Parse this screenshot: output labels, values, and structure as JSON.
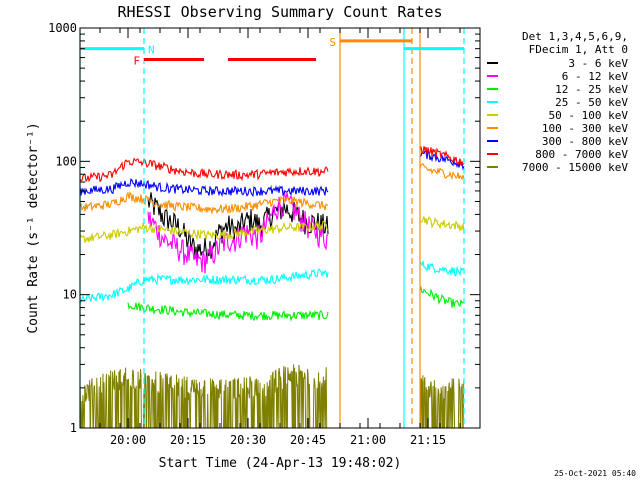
{
  "chart_data": {
    "type": "line",
    "title": "RHESSI Observing Summary Count Rates",
    "xlabel": "Start Time (24-Apr-13 19:48:02)",
    "ylabel": "Count Rate (s⁻¹ detector⁻¹)",
    "x_range_minutes_after_start": [
      0,
      100
    ],
    "x_ticks": [
      {
        "label": "20:00",
        "t": 12
      },
      {
        "label": "20:15",
        "t": 27
      },
      {
        "label": "20:30",
        "t": 42
      },
      {
        "label": "20:45",
        "t": 57
      },
      {
        "label": "21:00",
        "t": 72
      },
      {
        "label": "21:15",
        "t": 87
      }
    ],
    "y_scale": "log",
    "ylim": [
      1,
      1000
    ],
    "y_ticks": [
      {
        "label": "1",
        "v": 1
      },
      {
        "label": "10",
        "v": 10
      },
      {
        "label": "100",
        "v": 100
      },
      {
        "label": "1000",
        "v": 1000
      }
    ],
    "legend_header": [
      "Det 1,3,4,5,6,9,",
      "FDecim 1, Att 0"
    ],
    "legend_placement": "right",
    "series": [
      {
        "name": "3 - 6 keV",
        "color": "#000000",
        "kind": "low",
        "x": [
          17,
          19,
          21,
          23,
          25,
          27,
          29,
          31,
          33,
          35,
          37,
          39,
          41,
          43,
          45,
          47,
          49,
          51,
          53,
          55,
          57,
          59,
          61,
          62
        ],
        "values": [
          50,
          45,
          38,
          35,
          32,
          25,
          22,
          22,
          24,
          30,
          33,
          30,
          35,
          37,
          33,
          38,
          42,
          45,
          42,
          38,
          35,
          35,
          33,
          32
        ]
      },
      {
        "name": "6 - 12 keV",
        "color": "#ff00ff",
        "kind": "low",
        "x": [
          17,
          19,
          21,
          23,
          25,
          27,
          29,
          31,
          33,
          35,
          37,
          39,
          41,
          43,
          45,
          47,
          49,
          51,
          53,
          55,
          57,
          59,
          61,
          62
        ],
        "values": [
          38,
          32,
          26,
          24,
          22,
          20,
          18,
          18,
          20,
          23,
          26,
          26,
          30,
          28,
          27,
          35,
          45,
          50,
          45,
          38,
          33,
          30,
          27,
          27
        ]
      },
      {
        "name": "12 - 25 keV",
        "color": "#00ee00",
        "kind": "flat",
        "x": [
          12,
          16,
          20,
          24,
          28,
          32,
          36,
          40,
          44,
          48,
          52,
          56,
          60,
          62,
          85,
          88,
          91,
          94,
          96
        ],
        "values": [
          8.5,
          8,
          7.8,
          7.5,
          7.3,
          7.2,
          7.1,
          7,
          7,
          7,
          7,
          7,
          7,
          7,
          11,
          10,
          9,
          8.5,
          8.5
        ]
      },
      {
        "name": "25 - 50 keV",
        "color": "#00ffff",
        "kind": "flat",
        "x": [
          0,
          4,
          8,
          12,
          16,
          20,
          24,
          28,
          32,
          36,
          40,
          44,
          48,
          52,
          56,
          60,
          62,
          85,
          88,
          91,
          94,
          96
        ],
        "values": [
          9,
          9.5,
          10,
          11,
          13,
          13,
          13,
          13,
          13,
          13,
          13,
          13,
          13,
          13.5,
          14,
          14.5,
          14.5,
          17,
          16,
          15.5,
          15,
          14.5
        ]
      },
      {
        "name": "50 - 100 keV",
        "color": "#cccc00",
        "kind": "flat",
        "x": [
          0,
          4,
          8,
          12,
          16,
          20,
          24,
          28,
          32,
          36,
          40,
          44,
          48,
          52,
          56,
          60,
          62,
          85,
          88,
          91,
          94,
          96
        ],
        "values": [
          26,
          27,
          28,
          30,
          32,
          31,
          30,
          29,
          28,
          28,
          29,
          30,
          31,
          32,
          32,
          33,
          33,
          38,
          35,
          34,
          33,
          32
        ]
      },
      {
        "name": "100 - 300 keV",
        "color": "#ff8c00",
        "kind": "flat",
        "x": [
          0,
          4,
          8,
          12,
          16,
          20,
          24,
          28,
          32,
          36,
          40,
          44,
          48,
          52,
          56,
          60,
          62,
          85,
          88,
          91,
          94,
          96
        ],
        "values": [
          45,
          46,
          48,
          55,
          52,
          48,
          46,
          45,
          44,
          44,
          45,
          47,
          50,
          51,
          49,
          47,
          46,
          90,
          85,
          82,
          78,
          75
        ]
      },
      {
        "name": "300 - 800 keV",
        "color": "#0000ff",
        "kind": "flat",
        "x": [
          0,
          4,
          8,
          12,
          16,
          20,
          24,
          28,
          32,
          36,
          40,
          44,
          48,
          52,
          56,
          60,
          62,
          85,
          88,
          91,
          94,
          96
        ],
        "values": [
          60,
          61,
          62,
          70,
          68,
          64,
          62,
          61,
          60,
          60,
          60,
          60,
          60,
          60,
          60,
          60,
          60,
          115,
          110,
          104,
          99,
          95
        ]
      },
      {
        "name": "800 - 7000 keV",
        "color": "#ff0000",
        "kind": "flat",
        "x": [
          0,
          4,
          8,
          12,
          16,
          20,
          24,
          28,
          32,
          36,
          40,
          44,
          48,
          52,
          56,
          60,
          62,
          85,
          88,
          91,
          94,
          96
        ],
        "values": [
          74,
          76,
          79,
          100,
          98,
          92,
          86,
          82,
          80,
          80,
          79,
          80,
          82,
          84,
          85,
          84,
          84,
          125,
          118,
          110,
          103,
          98
        ]
      },
      {
        "name": "7000 - 15000 keV",
        "color": "#808000",
        "kind": "noise",
        "x": [
          0,
          12,
          16,
          20,
          24,
          28,
          32,
          36,
          40,
          44,
          48,
          50,
          52,
          56,
          60,
          62,
          82,
          85,
          88,
          92,
          96
        ],
        "values": [
          1.8,
          2.5,
          2.3,
          2.2,
          2.1,
          2,
          2,
          2,
          2,
          2.1,
          2.2,
          2.4,
          2.5,
          2.5,
          2.4,
          2.4,
          2.2,
          2.1,
          2,
          2,
          2
        ]
      }
    ],
    "annotations": [
      {
        "label": "N",
        "color": "#00ffff",
        "kind": "night",
        "segments": [
          [
            0,
            16
          ],
          [
            81,
            96
          ]
        ],
        "level": 700
      },
      {
        "label": "F",
        "color": "#ff0000",
        "kind": "flare",
        "segments": [
          [
            16,
            31
          ],
          [
            37,
            59
          ]
        ],
        "level": 580
      },
      {
        "label": "S",
        "color": "#ff8c00",
        "kind": "saa",
        "segments": [
          [
            65,
            83
          ]
        ],
        "level": 800
      }
    ],
    "vertical_lines": [
      {
        "t": 0,
        "color": "#00ffff",
        "style": "solid"
      },
      {
        "t": 16,
        "color": "#00ffff",
        "style": "dashed"
      },
      {
        "t": 65,
        "color": "#ff8c00",
        "style": "solid"
      },
      {
        "t": 81,
        "color": "#00ffff",
        "style": "solid"
      },
      {
        "t": 83,
        "color": "#ff8c00",
        "style": "dashed"
      },
      {
        "t": 85,
        "color": "#ff8c00",
        "style": "solid"
      },
      {
        "t": 96,
        "color": "#00ffff",
        "style": "dashed"
      }
    ],
    "data_gap": [
      62,
      85
    ]
  },
  "footer_timestamp": "25-Oct-2021 05:40"
}
